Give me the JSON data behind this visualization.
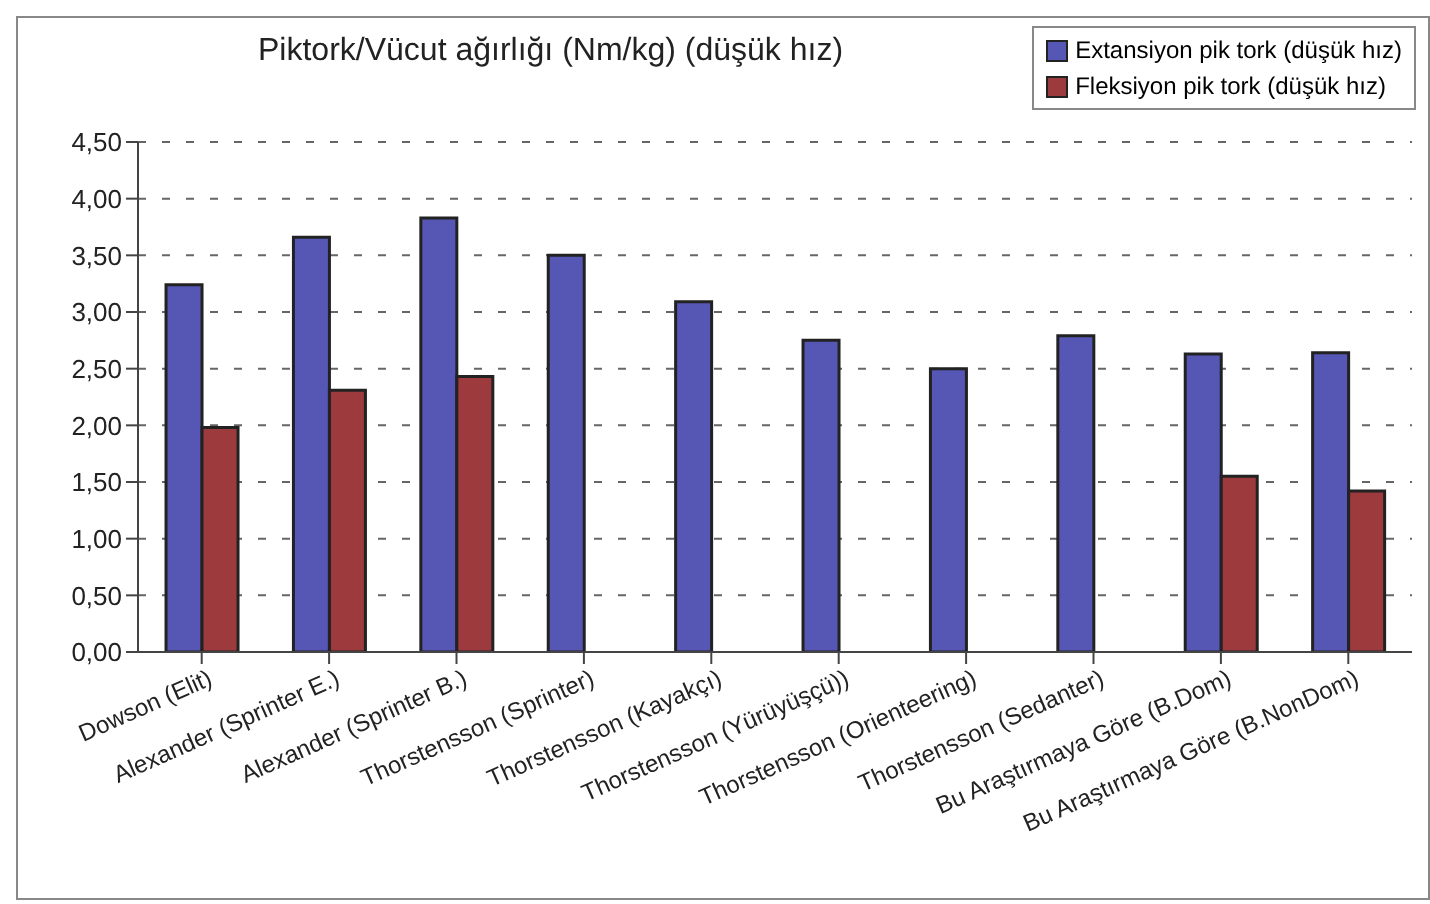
{
  "chart_data": {
    "type": "bar",
    "title": "Piktork/Vücut ağırlığı (Nm/kg) (düşük hız)",
    "categories": [
      "Dowson (Elit)",
      "Alexander (Sprinter E.)",
      "Alexander (Sprinter B.)",
      "Thorstensson (Sprinter)",
      "Thorstensson (Kayakçı)",
      "Thorstensson (Yürüyüşçü))",
      "Thorstensson (Orienteering)",
      "Thorstensson (Sedanter)",
      "Bu Araştırmaya Göre (B.Dom)",
      "Bu Araştırmaya Göre (B.NonDom)"
    ],
    "series": [
      {
        "name": "Extansiyon pik tork (düşük hız)",
        "color": "#5656b4",
        "values": [
          3.24,
          3.66,
          3.83,
          3.5,
          3.09,
          2.75,
          2.5,
          2.79,
          2.63,
          2.64
        ]
      },
      {
        "name": "Fleksiyon pik tork (düşük hız)",
        "color": "#9c3a3e",
        "values": [
          1.98,
          2.31,
          2.43,
          null,
          null,
          null,
          null,
          null,
          1.55,
          1.42
        ]
      }
    ],
    "ylim": [
      0,
      4.5
    ],
    "yticks": [
      {
        "value": 0,
        "label": "0,00"
      },
      {
        "value": 0.5,
        "label": "0,50"
      },
      {
        "value": 1,
        "label": "1,00"
      },
      {
        "value": 1.5,
        "label": "1,50"
      },
      {
        "value": 2,
        "label": "2,00"
      },
      {
        "value": 2.5,
        "label": "2,50"
      },
      {
        "value": 3,
        "label": "3,00"
      },
      {
        "value": 3.5,
        "label": "3,50"
      },
      {
        "value": 4,
        "label": "4,00"
      },
      {
        "value": 4.5,
        "label": "4,50"
      }
    ],
    "grid": "y",
    "legend": "top right"
  }
}
